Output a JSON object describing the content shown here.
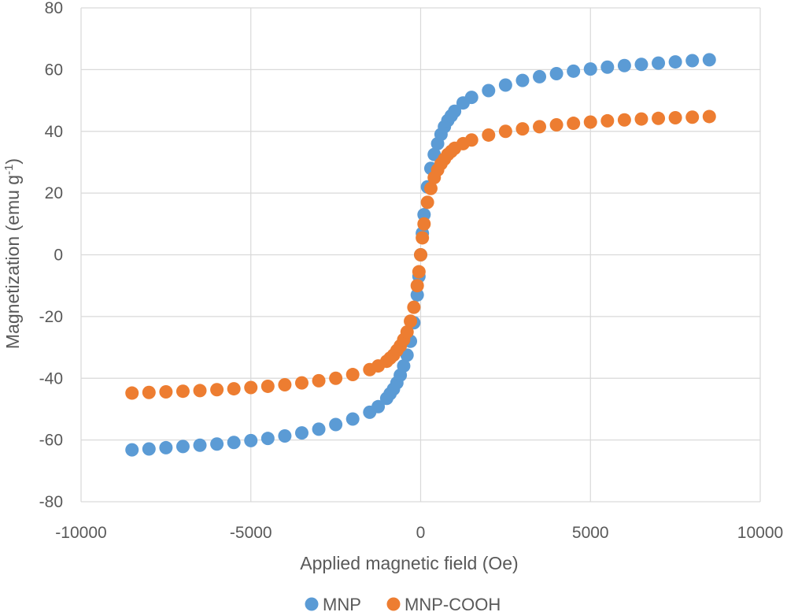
{
  "chart_data": {
    "type": "scatter",
    "title": "",
    "xlabel": "Applied magnetic field (Oe)",
    "ylabel_main": "Magnetization (emu  g",
    "ylabel_sup": "-1",
    "ylabel_close": ")",
    "xlim": [
      -10000,
      10000
    ],
    "ylim": [
      -80,
      80
    ],
    "x_ticks": [
      -10000,
      -5000,
      0,
      5000,
      10000
    ],
    "y_ticks": [
      -80,
      -60,
      -40,
      -20,
      0,
      20,
      40,
      60,
      80
    ],
    "grid": true,
    "legend_position": "bottom",
    "series": [
      {
        "name": "MNP",
        "color": "#5B9BD5",
        "points": [
          [
            -8500,
            -63.2
          ],
          [
            -8000,
            -62.9
          ],
          [
            -7500,
            -62.5
          ],
          [
            -7000,
            -62.1
          ],
          [
            -6500,
            -61.7
          ],
          [
            -6000,
            -61.3
          ],
          [
            -5500,
            -60.8
          ],
          [
            -5000,
            -60.2
          ],
          [
            -4500,
            -59.5
          ],
          [
            -4000,
            -58.7
          ],
          [
            -3500,
            -57.7
          ],
          [
            -3000,
            -56.5
          ],
          [
            -2500,
            -55.0
          ],
          [
            -2000,
            -53.2
          ],
          [
            -1500,
            -51.0
          ],
          [
            -1250,
            -49.2
          ],
          [
            -1000,
            -46.5
          ],
          [
            -900,
            -45.0
          ],
          [
            -800,
            -43.5
          ],
          [
            -700,
            -41.5
          ],
          [
            -600,
            -39.0
          ],
          [
            -500,
            -36.0
          ],
          [
            -400,
            -32.5
          ],
          [
            -300,
            -28.0
          ],
          [
            -200,
            -22.0
          ],
          [
            -100,
            -13.0
          ],
          [
            -50,
            -7.0
          ],
          [
            0,
            0
          ],
          [
            50,
            7.0
          ],
          [
            100,
            13.0
          ],
          [
            200,
            22.0
          ],
          [
            300,
            28.0
          ],
          [
            400,
            32.5
          ],
          [
            500,
            36.0
          ],
          [
            600,
            39.0
          ],
          [
            700,
            41.5
          ],
          [
            800,
            43.5
          ],
          [
            900,
            45.0
          ],
          [
            1000,
            46.5
          ],
          [
            1250,
            49.2
          ],
          [
            1500,
            51.0
          ],
          [
            2000,
            53.2
          ],
          [
            2500,
            55.0
          ],
          [
            3000,
            56.5
          ],
          [
            3500,
            57.7
          ],
          [
            4000,
            58.7
          ],
          [
            4500,
            59.5
          ],
          [
            5000,
            60.2
          ],
          [
            5500,
            60.8
          ],
          [
            6000,
            61.3
          ],
          [
            6500,
            61.7
          ],
          [
            7000,
            62.1
          ],
          [
            7500,
            62.5
          ],
          [
            8000,
            62.9
          ],
          [
            8500,
            63.2
          ]
        ]
      },
      {
        "name": "MNP-COOH",
        "color": "#ED7D31",
        "points": [
          [
            -8500,
            -44.8
          ],
          [
            -8000,
            -44.6
          ],
          [
            -7500,
            -44.4
          ],
          [
            -7000,
            -44.2
          ],
          [
            -6500,
            -44.0
          ],
          [
            -6000,
            -43.7
          ],
          [
            -5500,
            -43.4
          ],
          [
            -5000,
            -43.0
          ],
          [
            -4500,
            -42.6
          ],
          [
            -4000,
            -42.1
          ],
          [
            -3500,
            -41.5
          ],
          [
            -3000,
            -40.8
          ],
          [
            -2500,
            -40.0
          ],
          [
            -2000,
            -38.8
          ],
          [
            -1500,
            -37.2
          ],
          [
            -1250,
            -36.0
          ],
          [
            -1000,
            -34.5
          ],
          [
            -900,
            -33.5
          ],
          [
            -800,
            -32.5
          ],
          [
            -700,
            -31.0
          ],
          [
            -600,
            -29.5
          ],
          [
            -500,
            -27.5
          ],
          [
            -400,
            -25.0
          ],
          [
            -300,
            -21.5
          ],
          [
            -200,
            -17.0
          ],
          [
            -100,
            -10.0
          ],
          [
            -50,
            -5.5
          ],
          [
            0,
            0
          ],
          [
            50,
            5.5
          ],
          [
            100,
            10.0
          ],
          [
            200,
            17.0
          ],
          [
            300,
            21.5
          ],
          [
            400,
            25.0
          ],
          [
            500,
            27.5
          ],
          [
            600,
            29.5
          ],
          [
            700,
            31.0
          ],
          [
            800,
            32.5
          ],
          [
            900,
            33.5
          ],
          [
            1000,
            34.5
          ],
          [
            1250,
            36.0
          ],
          [
            1500,
            37.2
          ],
          [
            2000,
            38.8
          ],
          [
            2500,
            40.0
          ],
          [
            3000,
            40.8
          ],
          [
            3500,
            41.5
          ],
          [
            4000,
            42.1
          ],
          [
            4500,
            42.6
          ],
          [
            5000,
            43.0
          ],
          [
            5500,
            43.4
          ],
          [
            6000,
            43.7
          ],
          [
            6500,
            44.0
          ],
          [
            7000,
            44.2
          ],
          [
            7500,
            44.4
          ],
          [
            8000,
            44.6
          ],
          [
            8500,
            44.8
          ]
        ]
      }
    ]
  }
}
